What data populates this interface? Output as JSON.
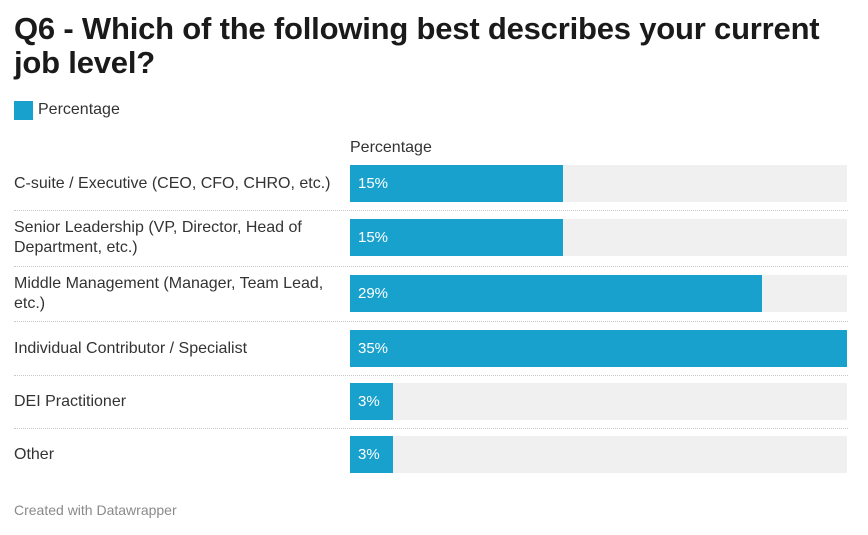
{
  "title": "Q6 - Which of the following best describes your current job level?",
  "legend": {
    "label": "Percentage"
  },
  "footer": "Created with Datawrapper",
  "colors": {
    "bar": "#18a1cd",
    "track": "#f0f0f0"
  },
  "chart_data": {
    "type": "bar",
    "orientation": "horizontal",
    "title": "Q6 - Which of the following best describes your current job level?",
    "column_header": "Percentage",
    "xlim": [
      0,
      35
    ],
    "categories": [
      "C-suite / Executive (CEO, CFO, CHRO, etc.)",
      "Senior Leadership (VP, Director, Head of Department, etc.)",
      "Middle Management (Manager, Team Lead, etc.)",
      "Individual Contributor / Specialist",
      "DEI Practitioner",
      "Other"
    ],
    "values": [
      15,
      15,
      29,
      35,
      3,
      3
    ],
    "value_labels": [
      "15%",
      "15%",
      "29%",
      "35%",
      "3%",
      "3%"
    ],
    "series": [
      {
        "name": "Percentage",
        "values": [
          15,
          15,
          29,
          35,
          3,
          3
        ]
      }
    ]
  }
}
